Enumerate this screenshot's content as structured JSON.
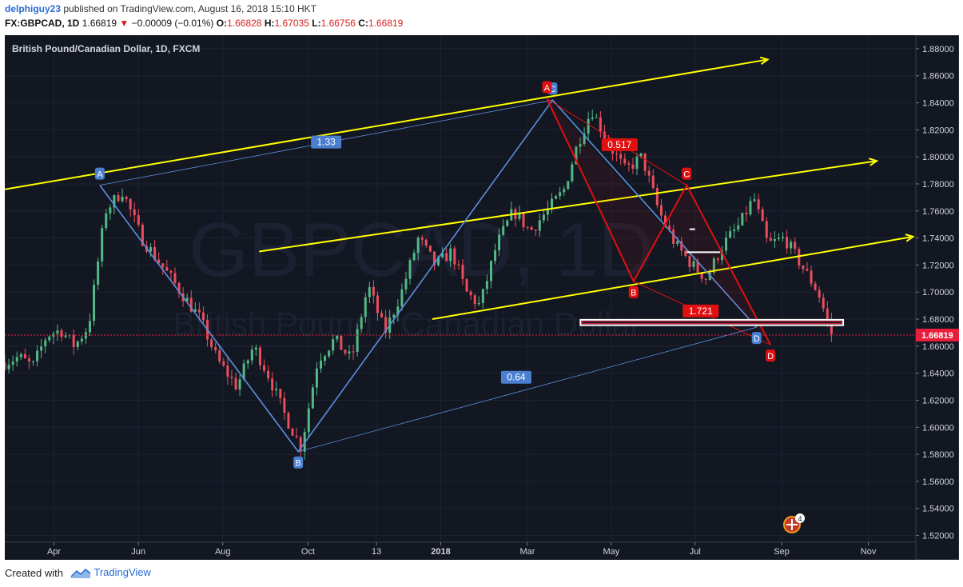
{
  "header": {
    "author": "delphiguy23",
    "published_text": "published on TradingView.com, August 16, 2018 15:10 HKT",
    "symbol": "FX:GBPCAD, 1D",
    "last": "1.66819",
    "change_arrow": "▼",
    "change": "−0.00009 (−0.01%)",
    "o_label": "O:",
    "o": "1.66828",
    "h_label": "H:",
    "h": "1.67035",
    "l_label": "L:",
    "l": "1.66756",
    "c_label": "C:",
    "c": "1.66819"
  },
  "footer": {
    "created_with": "Created with",
    "brand": "TradingView"
  },
  "colors": {
    "background": "#131722",
    "up_candle": "#53b987",
    "down_candle": "#eb4d5c",
    "channel": "#ffff00",
    "blue_pattern": "#5b8fde",
    "red_pattern": "#e01010",
    "price_tag": "#e91e3c"
  },
  "chart_data": {
    "type": "candlestick",
    "title": "British Pound/Canadian Dollar, 1D, FXCM",
    "watermark": "GBPCAD, 1D",
    "watermark_sub": "British Pound / Canadian Dollar",
    "x_tick_labels": [
      "Apr",
      "Jun",
      "Aug",
      "Oct",
      "13",
      "2018",
      "Mar",
      "May",
      "Jul",
      "Sep",
      "Nov"
    ],
    "y_tick_labels": [
      "1.88000",
      "1.86000",
      "1.84000",
      "1.82000",
      "1.80000",
      "1.78000",
      "1.76000",
      "1.74000",
      "1.72000",
      "1.70000",
      "1.68000",
      "1.66000",
      "1.64000",
      "1.62000",
      "1.60000",
      "1.58000",
      "1.56000",
      "1.54000",
      "1.52000"
    ],
    "ylim": [
      1.515,
      1.89
    ],
    "last_price": "1.66819",
    "price_path": [
      {
        "x": 0.0,
        "y": 1.648
      },
      {
        "x": 0.5,
        "y": 1.652
      },
      {
        "x": 1.0,
        "y": 1.645
      },
      {
        "x": 1.5,
        "y": 1.668
      },
      {
        "x": 2.0,
        "y": 1.672
      },
      {
        "x": 2.5,
        "y": 1.66
      },
      {
        "x": 3.0,
        "y": 1.675
      },
      {
        "x": 3.6,
        "y": 1.76
      },
      {
        "x": 4.2,
        "y": 1.775
      },
      {
        "x": 4.9,
        "y": 1.74
      },
      {
        "x": 5.6,
        "y": 1.72
      },
      {
        "x": 6.3,
        "y": 1.7
      },
      {
        "x": 7.0,
        "y": 1.68
      },
      {
        "x": 7.6,
        "y": 1.65
      },
      {
        "x": 8.3,
        "y": 1.63
      },
      {
        "x": 8.9,
        "y": 1.66
      },
      {
        "x": 9.4,
        "y": 1.64
      },
      {
        "x": 10.0,
        "y": 1.61
      },
      {
        "x": 10.6,
        "y": 1.585
      },
      {
        "x": 11.2,
        "y": 1.65
      },
      {
        "x": 11.8,
        "y": 1.665
      },
      {
        "x": 12.4,
        "y": 1.65
      },
      {
        "x": 13.0,
        "y": 1.705
      },
      {
        "x": 13.6,
        "y": 1.67
      },
      {
        "x": 14.2,
        "y": 1.7
      },
      {
        "x": 14.8,
        "y": 1.74
      },
      {
        "x": 15.4,
        "y": 1.72
      },
      {
        "x": 16.0,
        "y": 1.73
      },
      {
        "x": 16.5,
        "y": 1.7
      },
      {
        "x": 17.0,
        "y": 1.69
      },
      {
        "x": 17.6,
        "y": 1.735
      },
      {
        "x": 18.2,
        "y": 1.76
      },
      {
        "x": 18.8,
        "y": 1.745
      },
      {
        "x": 19.4,
        "y": 1.76
      },
      {
        "x": 20.0,
        "y": 1.775
      },
      {
        "x": 20.5,
        "y": 1.81
      },
      {
        "x": 21.0,
        "y": 1.835
      },
      {
        "x": 21.6,
        "y": 1.81
      },
      {
        "x": 22.2,
        "y": 1.79
      },
      {
        "x": 22.8,
        "y": 1.8
      },
      {
        "x": 23.4,
        "y": 1.76
      },
      {
        "x": 24.0,
        "y": 1.735
      },
      {
        "x": 24.6,
        "y": 1.72
      },
      {
        "x": 25.1,
        "y": 1.71
      },
      {
        "x": 25.7,
        "y": 1.735
      },
      {
        "x": 26.3,
        "y": 1.75
      },
      {
        "x": 26.8,
        "y": 1.77
      },
      {
        "x": 27.3,
        "y": 1.735
      },
      {
        "x": 27.9,
        "y": 1.74
      },
      {
        "x": 28.5,
        "y": 1.72
      },
      {
        "x": 29.1,
        "y": 1.7
      },
      {
        "x": 29.6,
        "y": 1.668
      }
    ],
    "channels": [
      {
        "from": {
          "x": 0.0,
          "y": 1.776
        },
        "to": {
          "x": 27.3,
          "y": 1.872
        }
      },
      {
        "from": {
          "x": 9.1,
          "y": 1.73
        },
        "to": {
          "x": 31.2,
          "y": 1.797
        }
      },
      {
        "from": {
          "x": 15.3,
          "y": 1.68
        },
        "to": {
          "x": 32.5,
          "y": 1.741
        }
      }
    ],
    "blue_pattern": {
      "points": [
        {
          "label": "A",
          "x": 3.4,
          "y": 1.779
        },
        {
          "label": "B",
          "x": 10.5,
          "y": 1.582
        },
        {
          "label": "C",
          "x": 19.6,
          "y": 1.842
        },
        {
          "label": "D",
          "x": 26.9,
          "y": 1.674
        }
      ],
      "ratios": [
        {
          "text": "1.33",
          "x": 11.5,
          "y": 1.811
        },
        {
          "text": "0.64",
          "x": 18.3,
          "y": 1.637
        }
      ]
    },
    "red_pattern": {
      "points": [
        {
          "label": "A",
          "x": 19.4,
          "y": 1.843
        },
        {
          "label": "B",
          "x": 22.5,
          "y": 1.708
        },
        {
          "label": "C",
          "x": 24.4,
          "y": 1.779
        },
        {
          "label": "D",
          "x": 27.4,
          "y": 1.661
        }
      ],
      "ratios": [
        {
          "text": "0.517",
          "x": 22.0,
          "y": 1.809
        },
        {
          "text": "1.721",
          "x": 24.9,
          "y": 1.686
        }
      ]
    },
    "zone": {
      "y_top": 1.6795,
      "y_bottom": 1.6755,
      "x_from": 20.6,
      "x_to": 30.0
    },
    "small_marks": [
      {
        "x": 24.4,
        "x2": 25.6,
        "y": 1.7295
      },
      {
        "x": 24.5,
        "x2": 24.7,
        "y": 1.7465
      }
    ],
    "badge_count": "4",
    "grid": true,
    "legend": "none"
  }
}
